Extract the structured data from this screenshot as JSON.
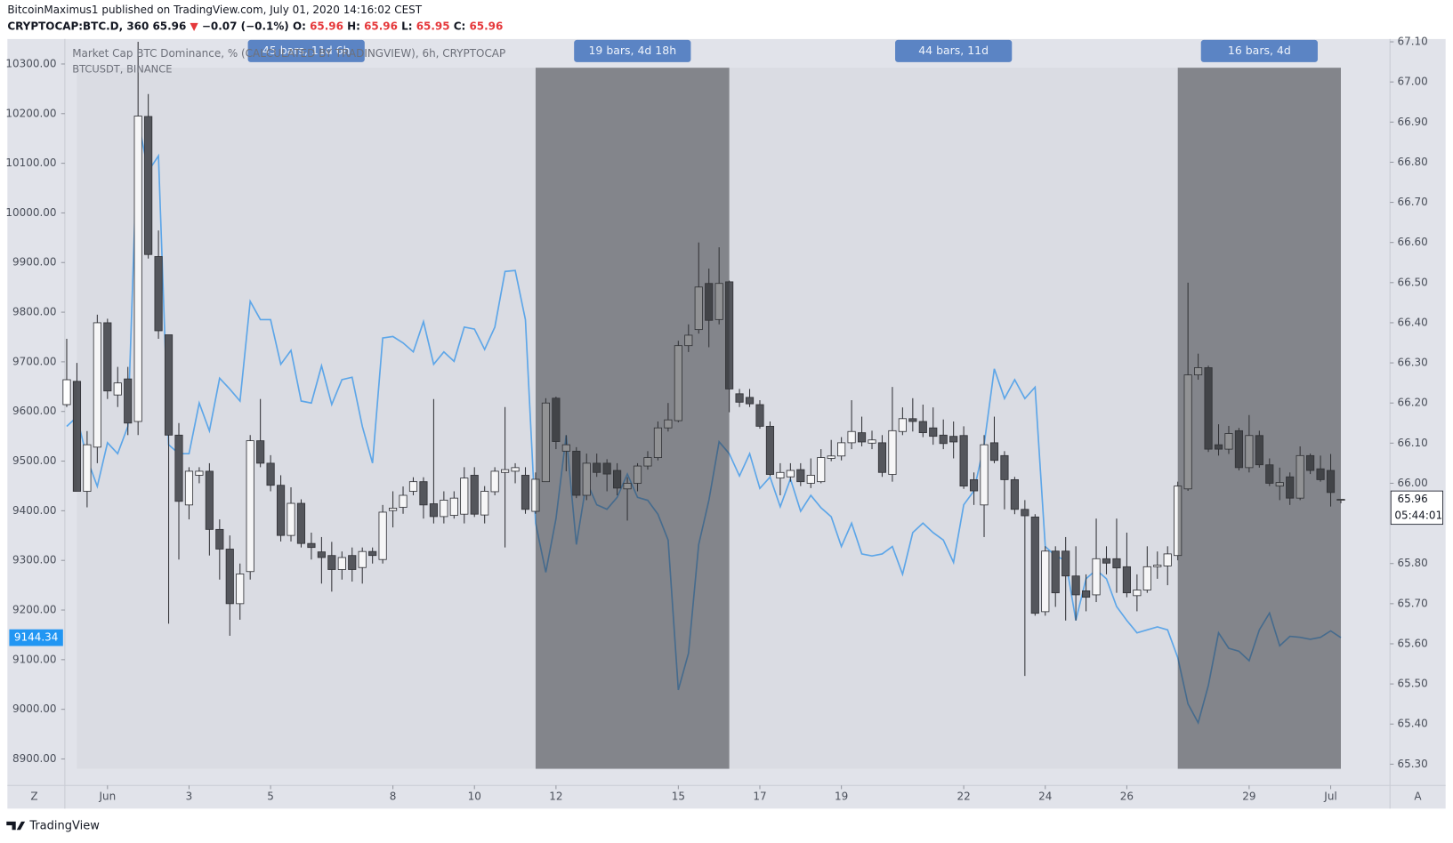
{
  "header": {
    "published": "BitcoinMaximus1 published on TradingView.com, July 01, 2020 14:16:02 CEST"
  },
  "quote": [
    {
      "text": "CRYPTOCAP:BTC.D, 360",
      "color": "#131722"
    },
    {
      "text": "65.96",
      "color": "#131722"
    },
    {
      "text": "▼",
      "color": "#e5383b"
    },
    {
      "text": "−0.07 (−0.1%)",
      "color": "#131722"
    },
    {
      "text": "O:",
      "color": "#131722"
    },
    {
      "text": "65.96",
      "color": "#e5383b"
    },
    {
      "text": "H:",
      "color": "#131722"
    },
    {
      "text": "65.96",
      "color": "#e5383b"
    },
    {
      "text": "L:",
      "color": "#131722"
    },
    {
      "text": "65.95",
      "color": "#e5383b"
    },
    {
      "text": "C:",
      "color": "#131722"
    },
    {
      "text": "65.96",
      "color": "#e5383b"
    }
  ],
  "footer": {
    "brand": "TradingView",
    "left_button": "Z",
    "right_button": "A"
  },
  "chart_data": {
    "type": "candlestick",
    "ylim": [
      8846.6,
      10350.3
    ],
    "yticks": [
      {
        "value": 8900,
        "label": "8900.00"
      },
      {
        "value": 9000,
        "label": "9000.00"
      },
      {
        "value": 9100,
        "label": "9100.00"
      },
      {
        "value": 9200,
        "label": "9200.00"
      },
      {
        "value": 9300,
        "label": "9300.00"
      },
      {
        "value": 9400,
        "label": "9400.00"
      },
      {
        "value": 9500,
        "label": "9500.00"
      },
      {
        "value": 9600,
        "label": "9600.00"
      },
      {
        "value": 9700,
        "label": "9700.00"
      },
      {
        "value": 9800,
        "label": "9800.00"
      },
      {
        "value": 9900,
        "label": "9900.00"
      },
      {
        "value": 10000,
        "label": "10000.00"
      },
      {
        "value": 10100,
        "label": "10100.00"
      },
      {
        "value": 10200,
        "label": "10200.00"
      },
      {
        "value": 10300,
        "label": "10300.00"
      }
    ],
    "y2lim": [
      65.247,
      67.107
    ],
    "y2ticks": [
      {
        "value": 65.3,
        "label": "65.30"
      },
      {
        "value": 65.4,
        "label": "65.40"
      },
      {
        "value": 65.5,
        "label": "65.50"
      },
      {
        "value": 65.6,
        "label": "65.60"
      },
      {
        "value": 65.7,
        "label": "65.70"
      },
      {
        "value": 65.8,
        "label": "65.80"
      },
      {
        "value": 66,
        "label": "66.00"
      },
      {
        "value": 66.1,
        "label": "66.10"
      },
      {
        "value": 66.2,
        "label": "66.20"
      },
      {
        "value": 66.3,
        "label": "66.30"
      },
      {
        "value": 66.4,
        "label": "66.40"
      },
      {
        "value": 66.5,
        "label": "66.50"
      },
      {
        "value": 66.6,
        "label": "66.60"
      },
      {
        "value": 66.7,
        "label": "66.70"
      },
      {
        "value": 66.8,
        "label": "66.80"
      },
      {
        "value": 66.9,
        "label": "66.90"
      },
      {
        "value": 67,
        "label": "67.00"
      },
      {
        "value": 67.1,
        "label": "67.10"
      }
    ],
    "xticks": [
      {
        "value": 1,
        "label": "Jun"
      },
      3,
      5,
      8,
      10,
      12,
      15,
      17,
      19,
      22,
      24,
      26,
      29,
      {
        "value": 31,
        "label": "Jul"
      }
    ],
    "ranges": [
      {
        "label": "45 bars, 11d 6h"
      },
      {
        "label": "19 bars, 4d 18h"
      },
      {
        "label": "44 bars, 11d"
      },
      {
        "label": "16 bars, 4d"
      }
    ],
    "series": [
      {
        "name": "Market Cap BTC Dominance, % (CALCULATED BY TRADINGVIEW), 6h, CRYPTOCAP",
        "type": "candlestick",
        "axis": "y2",
        "up_color": "#ffffff",
        "down_color": "#505257",
        "last_label": "65.96",
        "countdown": "05:44:01",
        "open": [
          66.196,
          66.254,
          65.98,
          66.09,
          66.4,
          66.22,
          66.26,
          66.154,
          66.914,
          66.565,
          66.37,
          66.12,
          65.946,
          66.02,
          66.03,
          65.885,
          65.836,
          65.7,
          65.78,
          66.106,
          66.05,
          65.995,
          65.87,
          65.95,
          65.85,
          65.829,
          65.82,
          65.785,
          65.82,
          65.79,
          65.83,
          65.81,
          65.932,
          65.94,
          65.98,
          66.004,
          65.949,
          65.917,
          65.92,
          65.923,
          66.02,
          65.921,
          65.979,
          66.027,
          66.03,
          66.02,
          65.93,
          66.004,
          66.212,
          66.08,
          66.08,
          65.97,
          66.05,
          66.05,
          66.032,
          65.986,
          66.0,
          66.043,
          66.064,
          66.138,
          66.156,
          66.343,
          66.383,
          66.498,
          66.408,
          66.502,
          66.223,
          66.214,
          66.196,
          66.142,
          66.013,
          66.016,
          66.034,
          66.0,
          66.004,
          66.062,
          66.068,
          66.101,
          66.126,
          66.1,
          66.101,
          66.022,
          66.129,
          66.161,
          66.154,
          66.138,
          66.12,
          66.117,
          66.119,
          66.009,
          65.946,
          66.101,
          66.069,
          66.009,
          65.935,
          65.916,
          65.68,
          65.831,
          65.831,
          65.769,
          65.732,
          65.722,
          65.812,
          65.812,
          65.792,
          65.72,
          65.734,
          65.792,
          65.794,
          65.82,
          65.986,
          66.27,
          66.288,
          66.096,
          66.085,
          66.131,
          66.039,
          66.119,
          66.046,
          65.993,
          66.016,
          65.963,
          66.069,
          66.036,
          66.032,
          65.96
        ],
        "high": [
          66.36,
          66.3,
          66.13,
          66.42,
          66.41,
          66.29,
          66.29,
          67.1,
          66.97,
          66.63,
          66.37,
          66.15,
          66.04,
          66.04,
          66.05,
          65.91,
          65.87,
          65.8,
          66.12,
          66.21,
          66.07,
          66.02,
          65.99,
          65.96,
          65.877,
          65.866,
          65.854,
          65.83,
          65.84,
          65.84,
          65.84,
          65.946,
          65.98,
          65.992,
          66.015,
          66.015,
          66.21,
          65.98,
          65.98,
          66.04,
          66.04,
          65.993,
          66.04,
          66.19,
          66.05,
          66.04,
          66.027,
          66.212,
          66.216,
          66.12,
          66.09,
          66.074,
          66.074,
          66.06,
          66.05,
          66.015,
          66.05,
          66.08,
          66.154,
          66.2,
          66.355,
          66.396,
          66.6,
          66.535,
          66.588,
          66.505,
          66.235,
          66.235,
          66.207,
          66.154,
          66.05,
          66.05,
          66.05,
          66.062,
          66.085,
          66.108,
          66.115,
          66.207,
          66.166,
          66.131,
          66.12,
          66.24,
          66.189,
          66.212,
          66.196,
          66.189,
          66.159,
          66.154,
          66.142,
          66.027,
          66.12,
          66.166,
          66.08,
          66.016,
          65.958,
          65.923,
          65.843,
          65.843,
          65.866,
          65.843,
          65.773,
          65.912,
          65.843,
          65.912,
          65.877,
          65.773,
          65.843,
          65.83,
          65.843,
          66.004,
          66.5,
          66.323,
          66.293,
          66.147,
          66.143,
          66.138,
          66.17,
          66.131,
          66.062,
          66.039,
          66.027,
          66.092,
          66.074,
          66.069,
          66.073,
          65.96
        ],
        "low": [
          66.19,
          65.98,
          65.94,
          66.05,
          66.21,
          66.19,
          66.12,
          66.12,
          66.56,
          66.36,
          65.65,
          65.81,
          65.91,
          66.0,
          65.82,
          65.76,
          65.62,
          65.66,
          65.76,
          66.04,
          65.98,
          65.855,
          65.855,
          65.84,
          65.81,
          65.75,
          65.73,
          65.76,
          65.755,
          65.75,
          65.8,
          65.8,
          65.89,
          65.924,
          65.97,
          65.912,
          65.9,
          65.9,
          65.912,
          65.9,
          65.916,
          65.9,
          65.97,
          65.84,
          66.0,
          65.924,
          65.924,
          66.004,
          66.085,
          66.03,
          65.963,
          65.958,
          66.016,
          65.98,
          65.97,
          65.907,
          65.98,
          66.034,
          66.057,
          66.129,
          66.152,
          66.327,
          66.373,
          66.339,
          66.396,
          66.177,
          66.19,
          66.19,
          66.136,
          66.018,
          65.97,
          66.004,
          65.993,
          65.988,
          66.0,
          66.055,
          66.057,
          66.085,
          66.092,
          66.085,
          66.016,
          66.004,
          66.12,
          66.129,
          66.115,
          66.096,
          66.085,
          66.062,
          65.986,
          65.946,
          65.866,
          66.05,
          65.935,
          65.923,
          65.52,
          65.67,
          65.67,
          65.692,
          65.658,
          65.658,
          65.681,
          65.704,
          65.773,
          65.727,
          65.716,
          65.681,
          65.727,
          65.762,
          65.746,
          65.808,
          65.981,
          66.258,
          66.078,
          66.069,
          66.073,
          66.032,
          66.027,
          66.039,
          65.993,
          65.958,
          65.946,
          65.958,
          66.023,
          66.004,
          65.942,
          65.95
        ],
        "close": [
          66.258,
          65.98,
          66.096,
          66.4,
          66.23,
          66.25,
          66.15,
          66.915,
          66.57,
          66.38,
          66.12,
          65.955,
          66.03,
          66.03,
          65.885,
          65.836,
          65.7,
          65.774,
          66.106,
          66.05,
          65.995,
          65.87,
          65.95,
          65.85,
          65.84,
          65.815,
          65.785,
          65.815,
          65.785,
          65.83,
          65.82,
          65.928,
          65.938,
          65.97,
          66.004,
          65.946,
          65.917,
          65.958,
          65.963,
          66.013,
          65.923,
          65.98,
          66.03,
          66.034,
          66.039,
          65.935,
          66.01,
          66.2,
          66.104,
          66.096,
          65.97,
          66.05,
          66.027,
          66.023,
          65.988,
          66.0,
          66.043,
          66.064,
          66.138,
          66.158,
          66.343,
          66.369,
          66.489,
          66.406,
          66.498,
          66.235,
          66.202,
          66.198,
          66.142,
          66.022,
          66.027,
          66.032,
          66.004,
          66.02,
          66.064,
          66.068,
          66.101,
          66.129,
          66.103,
          66.108,
          66.027,
          66.131,
          66.161,
          66.154,
          66.126,
          66.117,
          66.099,
          66.103,
          65.993,
          65.981,
          66.096,
          66.057,
          66.009,
          65.935,
          65.919,
          65.676,
          65.831,
          65.727,
          65.769,
          65.722,
          65.716,
          65.812,
          65.801,
          65.789,
          65.727,
          65.734,
          65.792,
          65.796,
          65.824,
          65.993,
          66.27,
          66.288,
          66.085,
          66.085,
          66.124,
          66.039,
          66.119,
          66.046,
          66.0,
          66.002,
          65.963,
          66.069,
          66.032,
          66.009,
          65.977,
          65.96
        ]
      },
      {
        "name": "BTCUSDT, BINANCE",
        "type": "line",
        "color": "#5aa9ef",
        "last_label": "9144.34",
        "label_color": "#2196f3",
        "values": [
          9570,
          9589,
          9505,
          9449,
          9537,
          9515,
          9570,
          10186,
          10084,
          10115,
          9533,
          9515,
          9515,
          9617,
          9561,
          9667,
          9645,
          9621,
          9822,
          9785,
          9785,
          9695,
          9723,
          9621,
          9617,
          9692,
          9614,
          9664,
          9669,
          9570,
          9496,
          9748,
          9751,
          9738,
          9720,
          9781,
          9695,
          9720,
          9701,
          9770,
          9766,
          9725,
          9770,
          9882,
          9884,
          9785,
          9375,
          9276,
          9384,
          9552,
          9332,
          9459,
          9412,
          9403,
          9427,
          9474,
          9427,
          9421,
          9393,
          9341,
          9039,
          9113,
          9332,
          9421,
          9539,
          9515,
          9470,
          9515,
          9445,
          9468,
          9408,
          9464,
          9399,
          9431,
          9406,
          9388,
          9328,
          9375,
          9313,
          9309,
          9313,
          9328,
          9272,
          9356,
          9375,
          9356,
          9341,
          9296,
          9412,
          9440,
          9533,
          9686,
          9626,
          9664,
          9626,
          9649,
          9328,
          9309,
          9300,
          9179,
          9263,
          9281,
          9263,
          9207,
          9179,
          9154,
          9160,
          9166,
          9160,
          9104,
          9011,
          8973,
          9048,
          9154,
          9123,
          9117,
          9098,
          9160,
          9194,
          9128,
          9147,
          9145,
          9141,
          9145,
          9158,
          9144.34
        ]
      }
    ]
  }
}
